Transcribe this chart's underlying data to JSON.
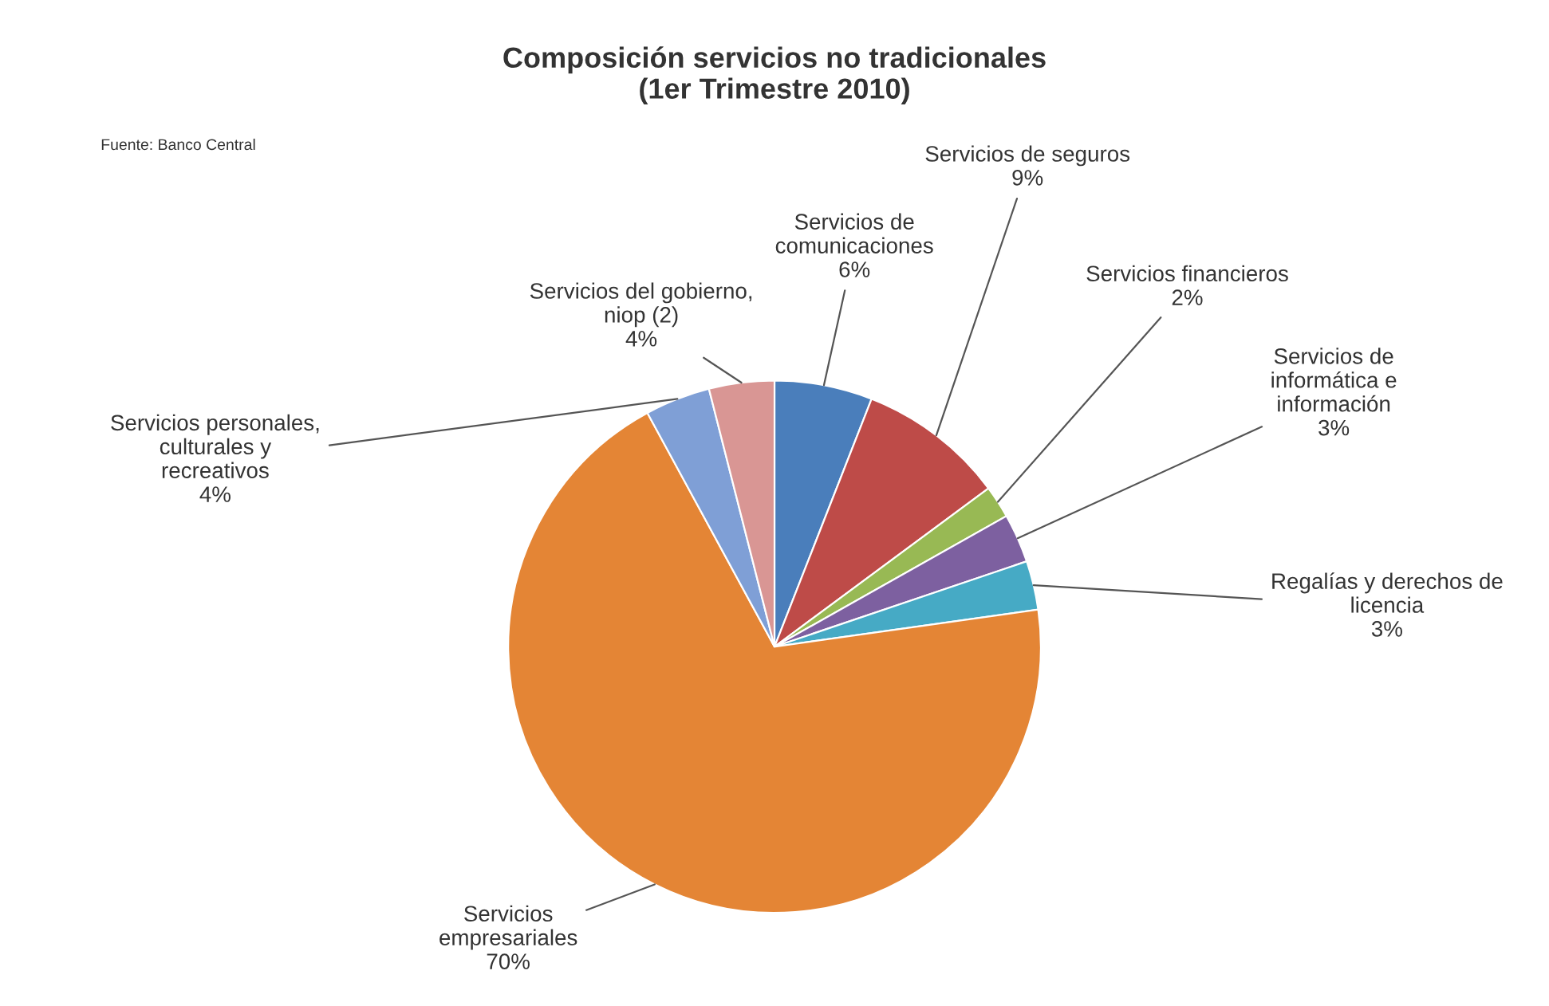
{
  "chart_data": {
    "type": "pie",
    "title": "Composición servicios no tradicionales\n(1er Trimestre 2010)",
    "annotations": [
      "Fuente: Banco Central"
    ],
    "categories": [
      "Servicios de\ncomunicaciones",
      "Servicios de seguros",
      "Servicios financieros",
      "Servicios de\ninformática e\ninformación",
      "Regalías y derechos de\nlicencia",
      "Servicios\nempresariales",
      "Servicios personales,\nculturales y\nrecreativos",
      "Servicios del gobierno,\nniop (2)"
    ],
    "values": [
      6,
      9,
      2,
      3,
      3,
      70,
      4,
      4
    ],
    "value_labels": [
      "6%",
      "9%",
      "2%",
      "3%",
      "3%",
      "70%",
      "4%",
      "4%"
    ],
    "colors": [
      "#4a7ebb",
      "#be4b48",
      "#98b954",
      "#7d60a0",
      "#46aac5",
      "#e48535",
      "#7f9fd6",
      "#d99694"
    ],
    "legend": false
  }
}
